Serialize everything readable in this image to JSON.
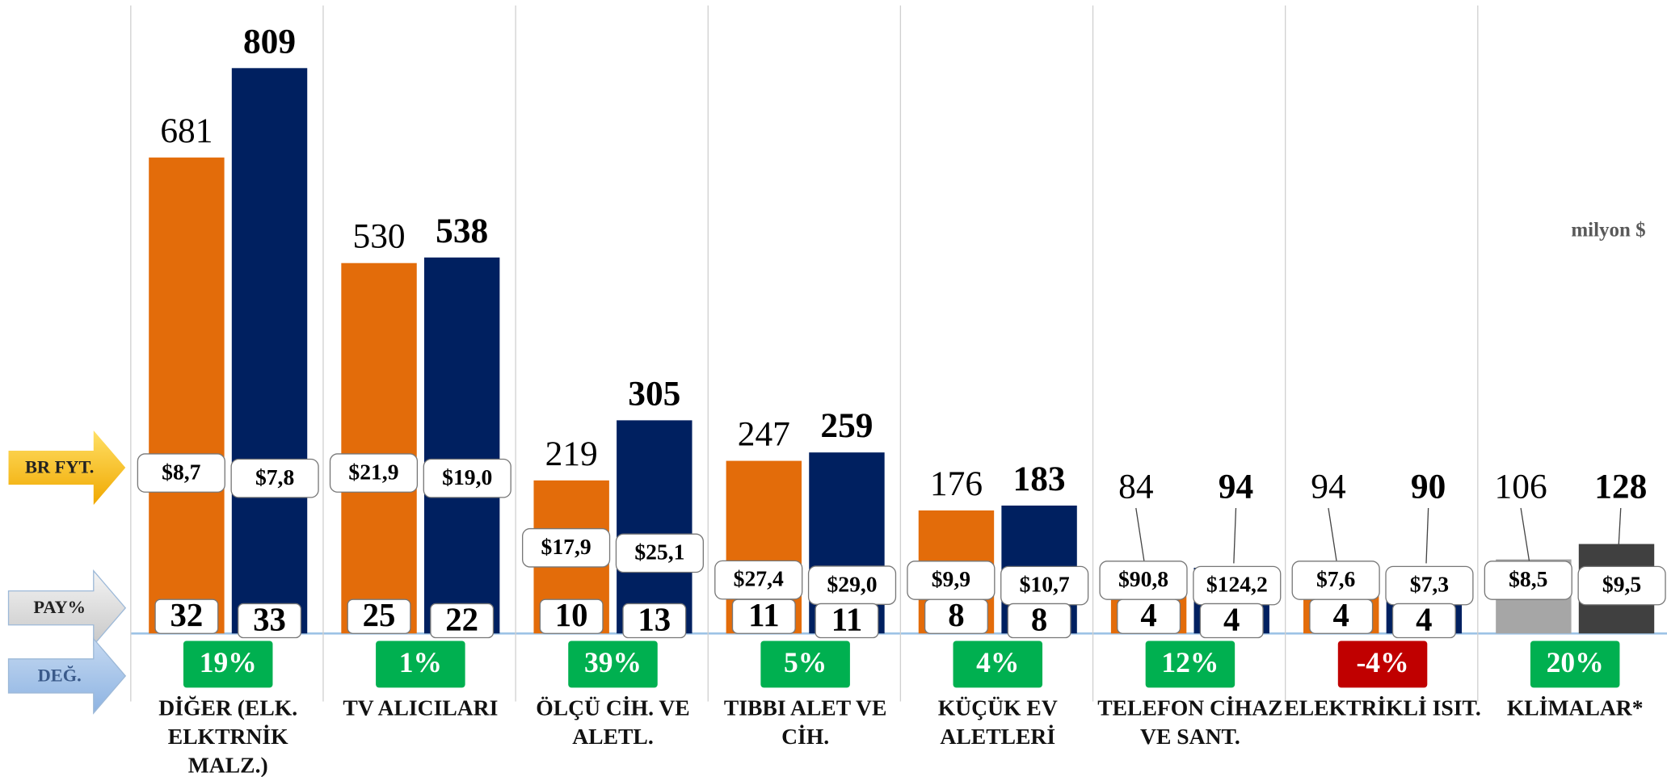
{
  "chart_data": {
    "type": "bar",
    "unit_note": "milyon $",
    "row_labels": [
      "BR FYT.",
      "PAY%",
      "DEĞ."
    ],
    "categories": [
      [
        "DİĞER (ELK.",
        "ELKTRNİK",
        "MALZ.)"
      ],
      [
        "TV ALICILARI"
      ],
      [
        "ÖLÇÜ CİH. VE",
        "ALETL."
      ],
      [
        "TIBBI ALET VE",
        "CİH."
      ],
      [
        "KÜÇÜK EV",
        "ALETLERİ"
      ],
      [
        "TELEFON CİHAZ",
        "VE SANT."
      ],
      [
        "ELEKTRİKLİ ISIT."
      ],
      [
        "KLİMALAR*"
      ]
    ],
    "series": [
      {
        "colors": [
          "#e36c0a",
          "#e36c0a",
          "#e36c0a",
          "#e36c0a",
          "#e36c0a",
          "#e36c0a",
          "#e36c0a",
          "#a6a6a6"
        ],
        "values": [
          681,
          530,
          219,
          247,
          176,
          84,
          94,
          106
        ],
        "prices": [
          "$8,7",
          "$21,9",
          "$17,9",
          "$27,4",
          "$9,9",
          "$90,8",
          "$7,6",
          "$8,5"
        ],
        "shares": [
          32,
          25,
          10,
          11,
          8,
          4,
          4,
          null
        ]
      },
      {
        "colors": [
          "#002060",
          "#002060",
          "#002060",
          "#002060",
          "#002060",
          "#002060",
          "#002060",
          "#404040"
        ],
        "values": [
          809,
          538,
          305,
          259,
          183,
          94,
          90,
          128
        ],
        "prices": [
          "$7,8",
          "$19,0",
          "$25,1",
          "$29,0",
          "$10,7",
          "$124,2",
          "$7,3",
          "$9,5"
        ],
        "shares": [
          33,
          22,
          13,
          11,
          8,
          4,
          4,
          null
        ]
      }
    ],
    "change": [
      19,
      1,
      39,
      5,
      4,
      12,
      -4,
      20
    ],
    "change_labels": [
      "19%",
      "1%",
      "39%",
      "5%",
      "4%",
      "12%",
      "-4%",
      "20%"
    ],
    "positive_color": "#00b050",
    "negative_color": "#c00000"
  }
}
